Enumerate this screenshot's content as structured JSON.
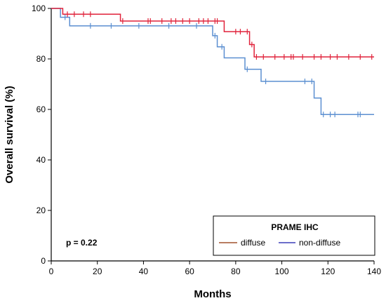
{
  "chart_data": {
    "type": "line",
    "xlabel": "Months",
    "ylabel": "Overall survival (%)",
    "xlim": [
      0,
      140
    ],
    "ylim": [
      0,
      100
    ],
    "xticks": [
      0,
      20,
      40,
      60,
      80,
      100,
      120,
      140
    ],
    "yticks": [
      0,
      20,
      40,
      60,
      80,
      100
    ],
    "grid": false,
    "legend": {
      "title": "PRAME IHC",
      "placement": "bottom-right",
      "entries": [
        "diffuse",
        "non-diffuse"
      ]
    },
    "annotation": "p = 0.22",
    "series": [
      {
        "name": "diffuse",
        "color": "#e0223a",
        "steps": [
          [
            0,
            100
          ],
          [
            5,
            97.7
          ],
          [
            30,
            95
          ],
          [
            75,
            90.8
          ],
          [
            86,
            85.7
          ],
          [
            88,
            80.8
          ],
          [
            140,
            80.8
          ]
        ],
        "censored": [
          [
            7,
            97.7
          ],
          [
            10,
            97.7
          ],
          [
            14,
            97.7
          ],
          [
            17,
            97.7
          ],
          [
            31,
            95
          ],
          [
            42,
            95
          ],
          [
            43,
            95
          ],
          [
            48,
            95
          ],
          [
            52,
            95
          ],
          [
            54,
            95
          ],
          [
            57,
            95
          ],
          [
            60,
            95
          ],
          [
            64,
            95
          ],
          [
            66,
            95
          ],
          [
            68,
            95
          ],
          [
            71,
            95
          ],
          [
            72,
            95
          ],
          [
            80,
            90.8
          ],
          [
            82,
            90.8
          ],
          [
            85,
            90.8
          ],
          [
            87,
            85.7
          ],
          [
            89,
            80.8
          ],
          [
            92,
            80.8
          ],
          [
            97,
            80.8
          ],
          [
            101,
            80.8
          ],
          [
            104,
            80.8
          ],
          [
            105,
            80.8
          ],
          [
            109,
            80.8
          ],
          [
            114,
            80.8
          ],
          [
            117,
            80.8
          ],
          [
            121,
            80.8
          ],
          [
            124,
            80.8
          ],
          [
            129,
            80.8
          ],
          [
            134,
            80.8
          ],
          [
            139,
            80.8
          ]
        ]
      },
      {
        "name": "non-diffuse",
        "color": "#5b8fd1",
        "steps": [
          [
            0,
            100
          ],
          [
            4,
            96.5
          ],
          [
            8,
            93.1
          ],
          [
            70,
            89.2
          ],
          [
            72,
            84.8
          ],
          [
            75,
            80.4
          ],
          [
            84,
            75.9
          ],
          [
            91,
            71.1
          ],
          [
            114,
            64.5
          ],
          [
            117,
            58
          ],
          [
            140,
            58
          ]
        ],
        "censored": [
          [
            6,
            96.5
          ],
          [
            17,
            93.1
          ],
          [
            26,
            93.1
          ],
          [
            38,
            93.1
          ],
          [
            51,
            93.1
          ],
          [
            63,
            93.1
          ],
          [
            71,
            89.2
          ],
          [
            74,
            84.8
          ],
          [
            85,
            75.9
          ],
          [
            93,
            71.1
          ],
          [
            110,
            71.1
          ],
          [
            113,
            71.1
          ],
          [
            118,
            58
          ],
          [
            121,
            58
          ],
          [
            123,
            58
          ],
          [
            133,
            58
          ],
          [
            134,
            58
          ]
        ]
      }
    ]
  }
}
